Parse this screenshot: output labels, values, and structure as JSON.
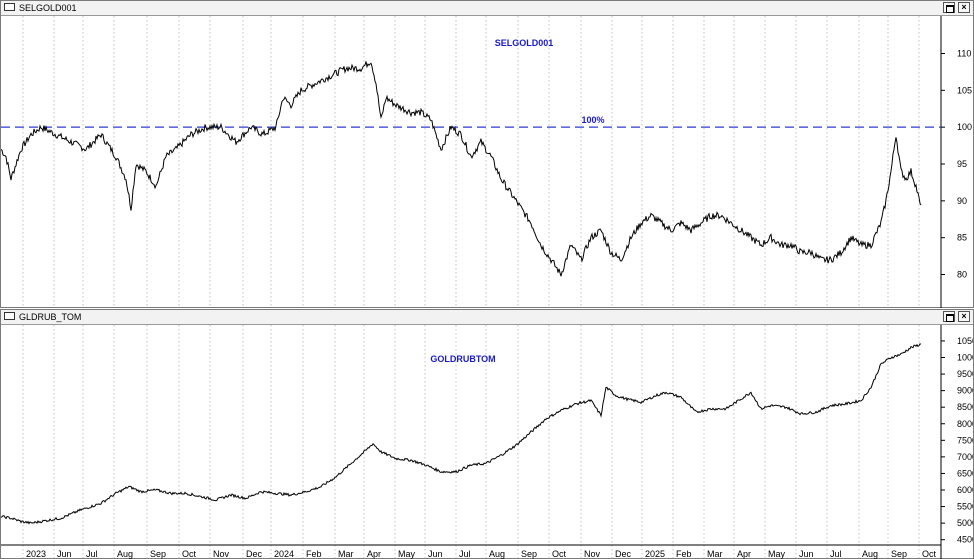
{
  "panes": [
    {
      "title": "SELGOLD001",
      "label": "SELGOLD001",
      "ref_label": "100%"
    },
    {
      "title": "GLDRUB_TOM",
      "label": "GOLDRUBTOM"
    }
  ],
  "window_buttons": {
    "maximize": "",
    "close": "×"
  },
  "colors": {
    "line": "#000000",
    "label": "#1a1acc",
    "refline": "#2b3bd6",
    "grid": "#9a9a9a"
  },
  "chart_data": [
    {
      "type": "line",
      "title": "SELGOLD001",
      "ylim": [
        76,
        114
      ],
      "yticks": [
        "80",
        "85",
        "90",
        "95",
        "100",
        "105",
        "110"
      ],
      "reference_line": {
        "value": 100,
        "label": "100%",
        "style": "dashed"
      },
      "grid": "vertical dotted",
      "x": [
        0,
        5,
        10,
        20,
        30,
        40,
        55,
        70,
        85,
        100,
        115,
        125,
        130,
        135,
        145,
        155,
        165,
        175,
        190,
        205,
        220,
        235,
        250,
        262,
        275,
        282,
        290,
        300,
        315,
        330,
        345,
        360,
        370,
        375,
        380,
        385,
        395,
        410,
        420,
        430,
        440,
        450,
        460,
        470,
        480,
        490,
        500,
        510,
        520,
        530,
        540,
        550,
        560,
        565,
        570,
        580,
        590,
        600,
        610,
        620,
        630,
        640,
        650,
        660,
        670,
        680,
        690,
        700,
        710,
        720,
        730,
        740,
        750,
        760,
        770,
        780,
        790,
        800,
        810,
        820,
        830,
        840,
        850,
        860,
        870,
        880,
        885,
        890,
        895,
        900,
        905,
        910,
        915,
        920
      ],
      "values": [
        97,
        96,
        93,
        97,
        99,
        100,
        99,
        98,
        97,
        99,
        96,
        93,
        89,
        95,
        94,
        92,
        96,
        97,
        99,
        100,
        100,
        98,
        100,
        99,
        100,
        104,
        103,
        105,
        106,
        107,
        108,
        108,
        109,
        106,
        101,
        104,
        103,
        102,
        102,
        101,
        97,
        100,
        99,
        96,
        98,
        96,
        93,
        91,
        89,
        87,
        84,
        82,
        80,
        82,
        84,
        82,
        85,
        86,
        83,
        82,
        85,
        87,
        88,
        87,
        86,
        87,
        86,
        87,
        88,
        88,
        87,
        86,
        85,
        84,
        85,
        84,
        84,
        83,
        83,
        82,
        82,
        83,
        85,
        84,
        84,
        87,
        90,
        94,
        99,
        94,
        93,
        94,
        92,
        89
      ],
      "x_unit": "pixel column (time order)"
    },
    {
      "type": "line",
      "title": "GOLDRUBTOM",
      "ylim": [
        4400,
        10800
      ],
      "yticks": [
        "4500",
        "5000",
        "5500",
        "6000",
        "6500",
        "7000",
        "7500",
        "8000",
        "8500",
        "9000",
        "9500",
        "10000",
        "10500"
      ],
      "xticks": [
        "2023",
        "Jun",
        "Jul",
        "Aug",
        "Sep",
        "Oct",
        "Nov",
        "Dec",
        "2024",
        "Feb",
        "Mar",
        "Apr",
        "May",
        "Jun",
        "Jul",
        "Aug",
        "Sep",
        "Oct",
        "Nov",
        "Dec",
        "2025",
        "Feb",
        "Mar",
        "Apr",
        "May",
        "Jun",
        "Jul",
        "Aug",
        "Sep",
        "Oct"
      ],
      "grid": "vertical dotted",
      "x": [
        0,
        10,
        20,
        30,
        40,
        60,
        80,
        100,
        115,
        128,
        140,
        155,
        170,
        185,
        200,
        215,
        230,
        245,
        260,
        275,
        290,
        305,
        320,
        335,
        350,
        365,
        372,
        380,
        395,
        410,
        425,
        440,
        455,
        470,
        485,
        500,
        515,
        530,
        545,
        560,
        575,
        590,
        600,
        605,
        615,
        625,
        640,
        655,
        665,
        680,
        695,
        710,
        725,
        740,
        750,
        760,
        770,
        785,
        800,
        815,
        830,
        845,
        860,
        870,
        880,
        885,
        890,
        900,
        910,
        920
      ],
      "values": [
        5200,
        5150,
        5050,
        5000,
        5050,
        5150,
        5400,
        5600,
        5900,
        6100,
        5950,
        6000,
        5900,
        5900,
        5800,
        5700,
        5850,
        5750,
        5950,
        5900,
        5850,
        5950,
        6100,
        6400,
        6800,
        7200,
        7400,
        7150,
        6950,
        6900,
        6750,
        6550,
        6550,
        6750,
        6800,
        7050,
        7350,
        7750,
        8150,
        8400,
        8600,
        8700,
        8250,
        9100,
        8850,
        8750,
        8650,
        8850,
        8950,
        8800,
        8350,
        8450,
        8450,
        8750,
        8950,
        8450,
        8550,
        8500,
        8300,
        8350,
        8550,
        8600,
        8700,
        9100,
        9800,
        9900,
        10000,
        10100,
        10300,
        10400
      ],
      "x_unit": "pixel column (time order)"
    }
  ]
}
